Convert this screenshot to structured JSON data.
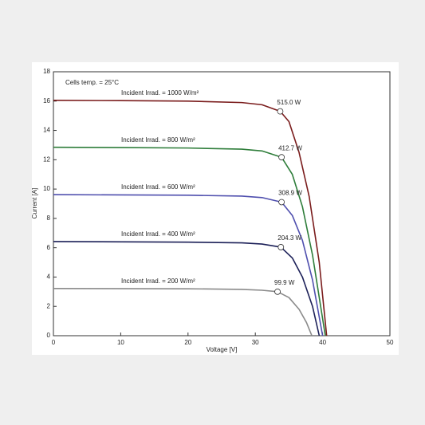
{
  "chart_data": {
    "type": "line",
    "annotation": "Cells temp. = 25°C",
    "xlabel": "Voltage [V]",
    "ylabel": "Current [A]",
    "xlim": [
      0,
      50
    ],
    "xticks": [
      0,
      10,
      20,
      30,
      40,
      50
    ],
    "ylim": [
      0,
      18
    ],
    "yticks": [
      0,
      2,
      4,
      6,
      8,
      10,
      12,
      14,
      16,
      18
    ],
    "grid": false,
    "series": [
      {
        "name": "Incident Irrad. = 1000 W/m²",
        "color": "#7a1c1c",
        "x": [
          0,
          10,
          20,
          28,
          31,
          33.7,
          35,
          36.5,
          38,
          39.5,
          40.6
        ],
        "values": [
          16.05,
          16.03,
          16.0,
          15.9,
          15.75,
          15.3,
          14.6,
          12.5,
          9.5,
          5,
          0
        ],
        "mpp": {
          "x": 33.7,
          "y": 15.3,
          "label": "515.0 W"
        }
      },
      {
        "name": "Incident Irrad. = 800 W/m²",
        "color": "#2e7d3a",
        "x": [
          0,
          10,
          20,
          28,
          31,
          33.9,
          35.5,
          37,
          38.5,
          40.4
        ],
        "values": [
          12.85,
          12.83,
          12.8,
          12.72,
          12.6,
          12.17,
          11,
          8.8,
          5.5,
          0
        ],
        "mpp": {
          "x": 33.9,
          "y": 12.17,
          "label": "412.7 W"
        }
      },
      {
        "name": "Incident Irrad. = 600 W/m²",
        "color": "#4f4fae",
        "x": [
          0,
          10,
          20,
          28,
          31,
          33.9,
          35.5,
          37,
          38.5,
          40.0
        ],
        "values": [
          9.62,
          9.6,
          9.58,
          9.52,
          9.42,
          9.11,
          8.2,
          6.5,
          3.8,
          0
        ],
        "mpp": {
          "x": 33.9,
          "y": 9.11,
          "label": "308.9 W"
        }
      },
      {
        "name": "Incident Irrad. = 400 W/m²",
        "color": "#1c2058",
        "x": [
          0,
          20,
          28,
          31,
          33.8,
          35.5,
          37,
          38.5,
          39.5
        ],
        "values": [
          6.42,
          6.38,
          6.33,
          6.25,
          6.04,
          5.3,
          4,
          2,
          0
        ],
        "mpp": {
          "x": 33.8,
          "y": 6.04,
          "label": "204.3 W"
        }
      },
      {
        "name": "Incident Irrad. = 200 W/m²",
        "color": "#8a8a8a",
        "x": [
          0,
          20,
          28,
          31,
          33.3,
          35,
          36.5,
          37.6,
          38.4
        ],
        "values": [
          3.22,
          3.2,
          3.16,
          3.1,
          3.0,
          2.6,
          1.8,
          0.9,
          0
        ],
        "mpp": {
          "x": 33.3,
          "y": 3.0,
          "label": "99.9 W"
        }
      }
    ]
  }
}
